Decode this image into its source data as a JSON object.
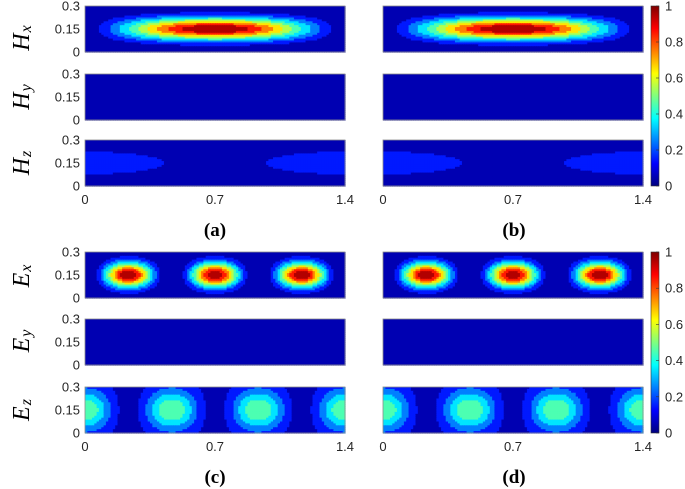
{
  "colormap": {
    "name": "jet",
    "stops": [
      "#00007f",
      "#0000ff",
      "#007fff",
      "#00ffff",
      "#7fff7f",
      "#ffff00",
      "#ff7f00",
      "#ff0000",
      "#7f0000"
    ]
  },
  "colorbar": {
    "ticks": [
      "0",
      "0.2",
      "0.4",
      "0.6",
      "0.8",
      "1"
    ],
    "range": [
      0,
      1
    ]
  },
  "chart_data": [
    {
      "id": "a",
      "type": "heatmap",
      "panel_label": "(a)",
      "rows": [
        {
          "label_main": "H",
          "label_sub": "x",
          "yticks": [
            "0.3",
            "0.15",
            "0"
          ]
        },
        {
          "label_main": "H",
          "label_sub": "y",
          "yticks": [
            "0.3",
            "0.15",
            "0"
          ]
        },
        {
          "label_main": "H",
          "label_sub": "z",
          "yticks": [
            "0.3",
            "0.15",
            "0"
          ]
        }
      ],
      "xticks": [
        "0",
        "0.7",
        "1.4"
      ],
      "xlim": [
        0,
        1.4
      ],
      "ylim": [
        0,
        0.3
      ]
    },
    {
      "id": "b",
      "type": "heatmap",
      "panel_label": "(b)",
      "xticks": [
        "0",
        "0.7",
        "1.4"
      ],
      "xlim": [
        0,
        1.4
      ],
      "ylim": [
        0,
        0.3
      ]
    },
    {
      "id": "c",
      "type": "heatmap",
      "panel_label": "(c)",
      "rows": [
        {
          "label_main": "E",
          "label_sub": "x",
          "yticks": [
            "0.3",
            "0.15",
            "0"
          ]
        },
        {
          "label_main": "E",
          "label_sub": "y",
          "yticks": [
            "0.3",
            "0.15",
            "0"
          ]
        },
        {
          "label_main": "E",
          "label_sub": "z",
          "yticks": [
            "0.3",
            "0.15",
            "0"
          ]
        }
      ],
      "xticks": [
        "0",
        "0.7",
        "1.4"
      ],
      "xlim": [
        0,
        1.4
      ],
      "ylim": [
        0,
        0.3
      ]
    },
    {
      "id": "d",
      "type": "heatmap",
      "panel_label": "(d)",
      "xticks": [
        "0",
        "0.7",
        "1.4"
      ],
      "xlim": [
        0,
        1.4
      ],
      "ylim": [
        0,
        0.3
      ]
    }
  ]
}
